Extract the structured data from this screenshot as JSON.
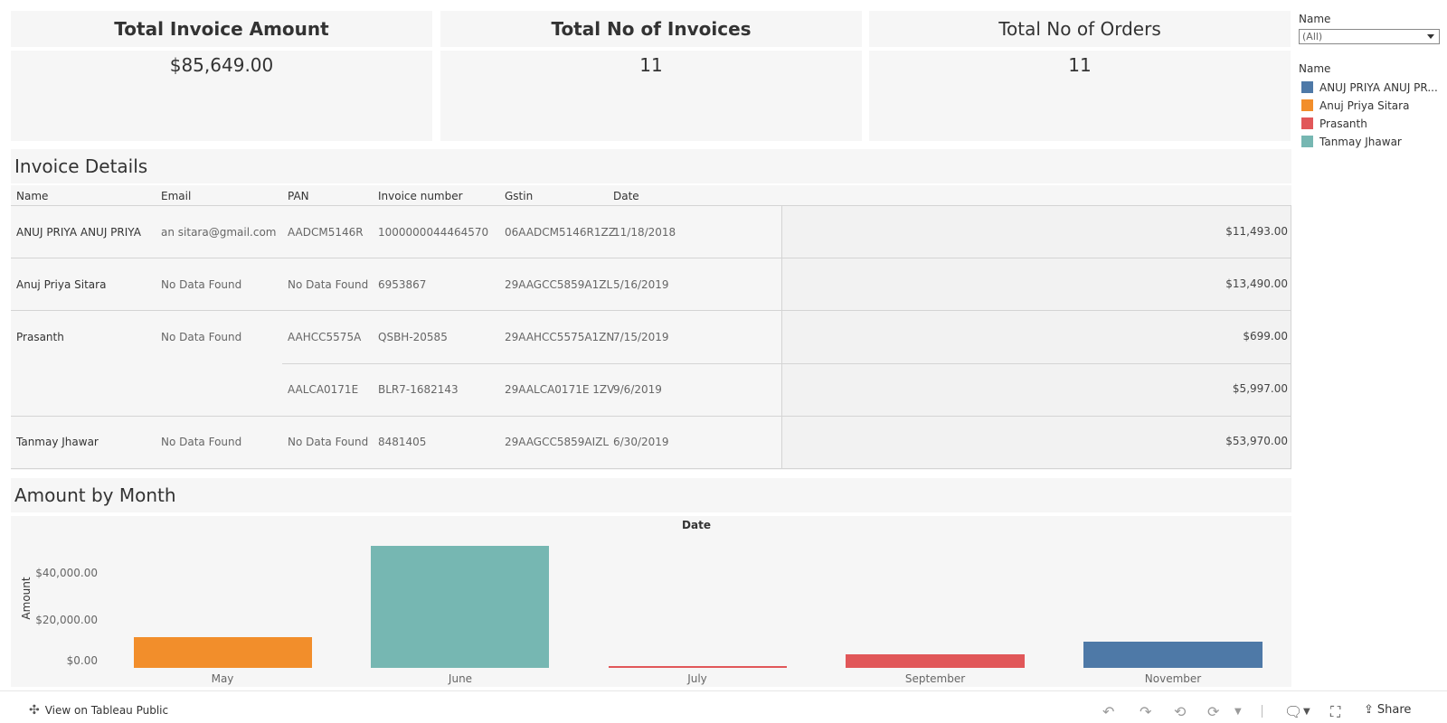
{
  "kpis": [
    {
      "title": "Total Invoice Amount",
      "value": "$85,649.00"
    },
    {
      "title": "Total No of Invoices",
      "value": "11"
    },
    {
      "title": "Total No of Orders",
      "value": "11"
    }
  ],
  "filter": {
    "label": "Name",
    "selected": "(All)"
  },
  "legend": {
    "title": "Name",
    "items": [
      {
        "label": "ANUJ PRIYA ANUJ PR...",
        "color": "#4e79a7"
      },
      {
        "label": "Anuj Priya Sitara",
        "color": "#f28e2b"
      },
      {
        "label": "Prasanth",
        "color": "#e15759"
      },
      {
        "label": "Tanmay Jhawar",
        "color": "#76b7b2"
      }
    ]
  },
  "invoice_details": {
    "title": "Invoice Details",
    "columns": [
      "Name",
      "Email",
      "PAN",
      "Invoice number",
      "Gstin",
      "Date"
    ],
    "rows": [
      {
        "name": "ANUJ PRIYA ANUJ PRIYA",
        "email": "an sitara@gmail.com",
        "pan": "AADCM5146R",
        "invoice": "1000000044464570",
        "gstin": "06AADCM5146R1ZZ",
        "date": "11/18/2018",
        "amount": "$11,493.00"
      },
      {
        "name": "Anuj Priya Sitara",
        "email": "No Data Found",
        "pan": "No Data Found",
        "invoice": "6953867",
        "gstin": "29AAGCC5859A1ZL",
        "date": "5/16/2019",
        "amount": "$13,490.00"
      },
      {
        "name": "Prasanth",
        "email": "No Data Found",
        "pan": "AAHCC5575A",
        "invoice": "QSBH-20585",
        "gstin": "29AAHCC5575A1ZN",
        "date": "7/15/2019",
        "amount": "$699.00"
      },
      {
        "name": "",
        "email": "",
        "pan": "AALCA0171E",
        "invoice": "BLR7-1682143",
        "gstin": "29AALCA0171E 1ZV",
        "date": "9/6/2019",
        "amount": "$5,997.00"
      },
      {
        "name": "Tanmay Jhawar",
        "email": "No Data Found",
        "pan": "No Data Found",
        "invoice": "8481405",
        "gstin": "29AAGCC5859AIZL",
        "date": "6/30/2019",
        "amount": "$53,970.00"
      }
    ]
  },
  "amount_by_month": {
    "title": "Amount by Month"
  },
  "chart_data": {
    "type": "bar",
    "title": "Amount by Month",
    "xlabel": "Date",
    "ylabel": "Amount",
    "categories": [
      "May",
      "June",
      "July",
      "September",
      "November"
    ],
    "values": [
      13490,
      53970,
      699,
      5997,
      11493
    ],
    "colors": [
      "#f28e2b",
      "#76b7b2",
      "#e15759",
      "#e15759",
      "#4e79a7"
    ],
    "yticks": [
      "$0.00",
      "$20,000.00",
      "$40,000.00"
    ],
    "ylim": [
      0,
      54000
    ]
  },
  "footer": {
    "view_link": "View on Tableau Public",
    "share": "Share"
  }
}
